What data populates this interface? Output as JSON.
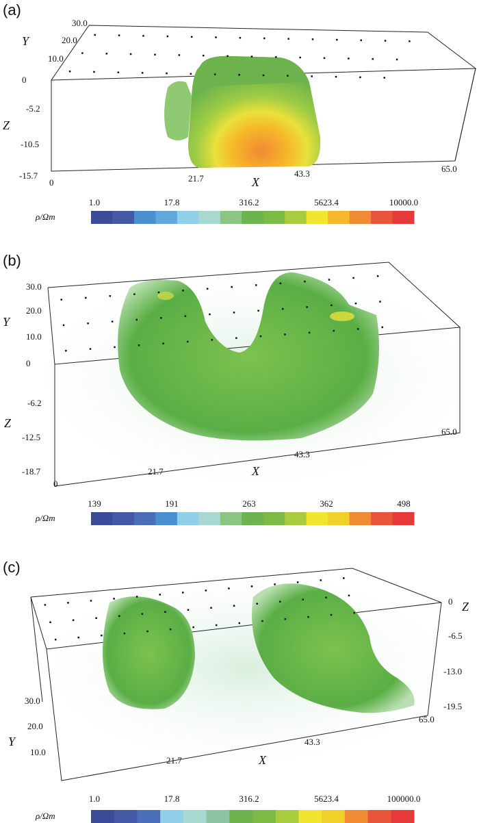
{
  "panels": [
    {
      "label": "(a)",
      "x_label": "X",
      "y_label": "Y",
      "z_label": "Z",
      "y_ticks": [
        "30.0",
        "20.0",
        "10.0"
      ],
      "z_ticks": [
        "0",
        "-5.2",
        "-10.5",
        "-15.7"
      ],
      "x_ticks": [
        "0",
        "21.7",
        "43.3",
        "65.0"
      ],
      "colorbar": {
        "unit": "ρ/Ωm",
        "ticks": [
          "1.0",
          "17.8",
          "316.2",
          "5623.4",
          "10000.0"
        ],
        "colors": [
          "#3b4a99",
          "#4558a6",
          "#4a8fcf",
          "#5fa8dc",
          "#8fd0e8",
          "#a8d8cf",
          "#8cc483",
          "#6db34e",
          "#7bbb45",
          "#a9cc3e",
          "#f2e530",
          "#f7b72a",
          "#f08a33",
          "#e8553a",
          "#e63a3a"
        ]
      }
    },
    {
      "label": "(b)",
      "x_label": "X",
      "y_label": "Y",
      "z_label": "Z",
      "y_ticks": [
        "30.0",
        "20.0",
        "10.0"
      ],
      "z_ticks": [
        "0",
        "-6.2",
        "-12.5",
        "-18.7"
      ],
      "x_ticks": [
        "0",
        "21.7",
        "43.3",
        "65.0"
      ],
      "colorbar": {
        "unit": "ρ/Ωm",
        "ticks": [
          "139",
          "191",
          "263",
          "362",
          "498"
        ],
        "colors": [
          "#3b4a99",
          "#4558a6",
          "#4a6fb8",
          "#4a8fcf",
          "#8fd0e8",
          "#a8d8cf",
          "#8cc483",
          "#6db34e",
          "#7bbb45",
          "#a9cc3e",
          "#f2e530",
          "#f2d02a",
          "#f08a33",
          "#e8553a",
          "#e63a3a"
        ]
      }
    },
    {
      "label": "(c)",
      "x_label": "X",
      "y_label": "Y",
      "z_label": "Z",
      "y_ticks": [
        "30.0",
        "20.0",
        "10.0"
      ],
      "z_ticks": [
        "0",
        "-6.5",
        "-13.0",
        "-19.5"
      ],
      "x_ticks": [
        "21.7",
        "43.3",
        "65.0"
      ],
      "colorbar": {
        "unit": "ρ/Ωm",
        "ticks": [
          "1.0",
          "17.8",
          "316.2",
          "5623.4",
          "100000.0"
        ],
        "colors": [
          "#3b4a99",
          "#4558a6",
          "#4a6fb8",
          "#8fd0e8",
          "#a8d8cf",
          "#8cc4a3",
          "#6db34e",
          "#7bbb45",
          "#a9cc3e",
          "#f2e530",
          "#f2d02a",
          "#f08a33",
          "#e8553a",
          "#e63a3a"
        ]
      }
    }
  ]
}
